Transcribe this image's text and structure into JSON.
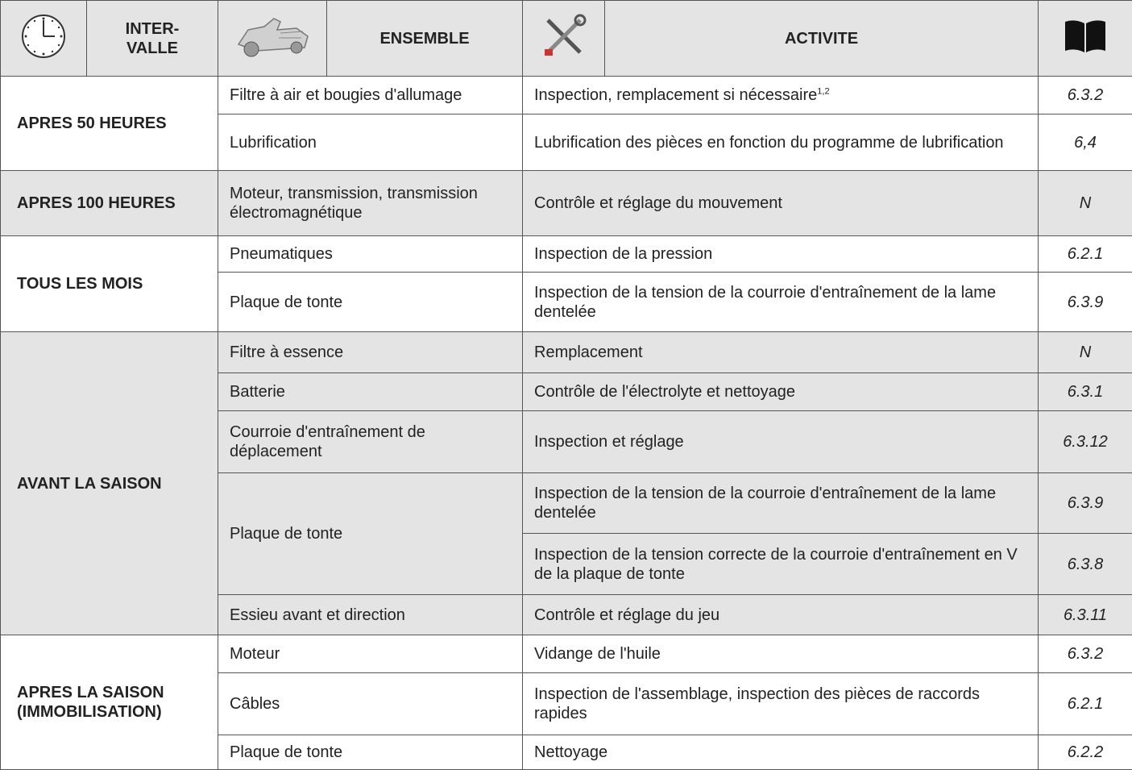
{
  "header": {
    "intervalle_lines": [
      "INTER-",
      "VALLE"
    ],
    "ensemble": "ENSEMBLE",
    "activite": "ACTIVITE"
  },
  "groups": [
    {
      "interval": "APRES 50 HEURES",
      "shaded": false,
      "rows": [
        {
          "ensemble": "Filtre à air et bougies d'allumage",
          "activities": [
            {
              "text": "Inspection, remplacement si nécessaire",
              "note": "1,2",
              "ref": "6.3.2"
            }
          ]
        },
        {
          "ensemble": "Lubrification",
          "activities": [
            {
              "text": "Lubrification des pièces en fonction du programme de lubrification",
              "ref": "6,4"
            }
          ]
        }
      ]
    },
    {
      "interval": "APRES 100 HEURES",
      "shaded": true,
      "rows": [
        {
          "ensemble": "Moteur, transmission, transmission électromagnétique",
          "activities": [
            {
              "text": "Contrôle et réglage du mouvement",
              "ref": "N"
            }
          ]
        }
      ]
    },
    {
      "interval": "TOUS LES MOIS",
      "shaded": false,
      "rows": [
        {
          "ensemble": "Pneumatiques",
          "activities": [
            {
              "text": "Inspection de la pression",
              "ref": "6.2.1"
            }
          ]
        },
        {
          "ensemble": "Plaque de tonte",
          "activities": [
            {
              "text": "Inspection de la tension de la courroie d'entraînement de la lame dentelée",
              "ref": "6.3.9"
            }
          ]
        }
      ]
    },
    {
      "interval": "AVANT LA SAISON",
      "shaded": true,
      "rows": [
        {
          "ensemble": "Filtre à essence",
          "activities": [
            {
              "text": "Remplacement",
              "ref": "N"
            }
          ]
        },
        {
          "ensemble": "Batterie",
          "activities": [
            {
              "text": "Contrôle de l'électrolyte et nettoyage",
              "ref": "6.3.1"
            }
          ]
        },
        {
          "ensemble": "Courroie d'entraînement de déplacement",
          "activities": [
            {
              "text": "Inspection et réglage",
              "ref": "6.3.12"
            }
          ]
        },
        {
          "ensemble": "Plaque de tonte",
          "activities": [
            {
              "text": "Inspection de la tension de la courroie d'entraînement de la lame dentelée",
              "ref": "6.3.9"
            },
            {
              "text": "Inspection de la tension correcte de la courroie d'entraînement en V de la plaque de tonte",
              "ref": "6.3.8"
            }
          ]
        },
        {
          "ensemble": "Essieu avant et direction",
          "activities": [
            {
              "text": "Contrôle et réglage du jeu",
              "ref": "6.3.11"
            }
          ]
        }
      ]
    },
    {
      "interval": "APRES LA SAISON (IMMOBILISATION)",
      "shaded": false,
      "rows": [
        {
          "ensemble": "Moteur",
          "activities": [
            {
              "text": "Vidange de l'huile",
              "ref": "6.3.2"
            }
          ]
        },
        {
          "ensemble": "Câbles",
          "activities": [
            {
              "text": "Inspection de l'assemblage, inspection des pièces de raccords rapides",
              "ref": "6.2.1"
            }
          ]
        },
        {
          "ensemble": "Plaque de tonte",
          "activities": [
            {
              "text": "Nettoyage",
              "ref": "6.2.2"
            }
          ]
        }
      ]
    }
  ]
}
